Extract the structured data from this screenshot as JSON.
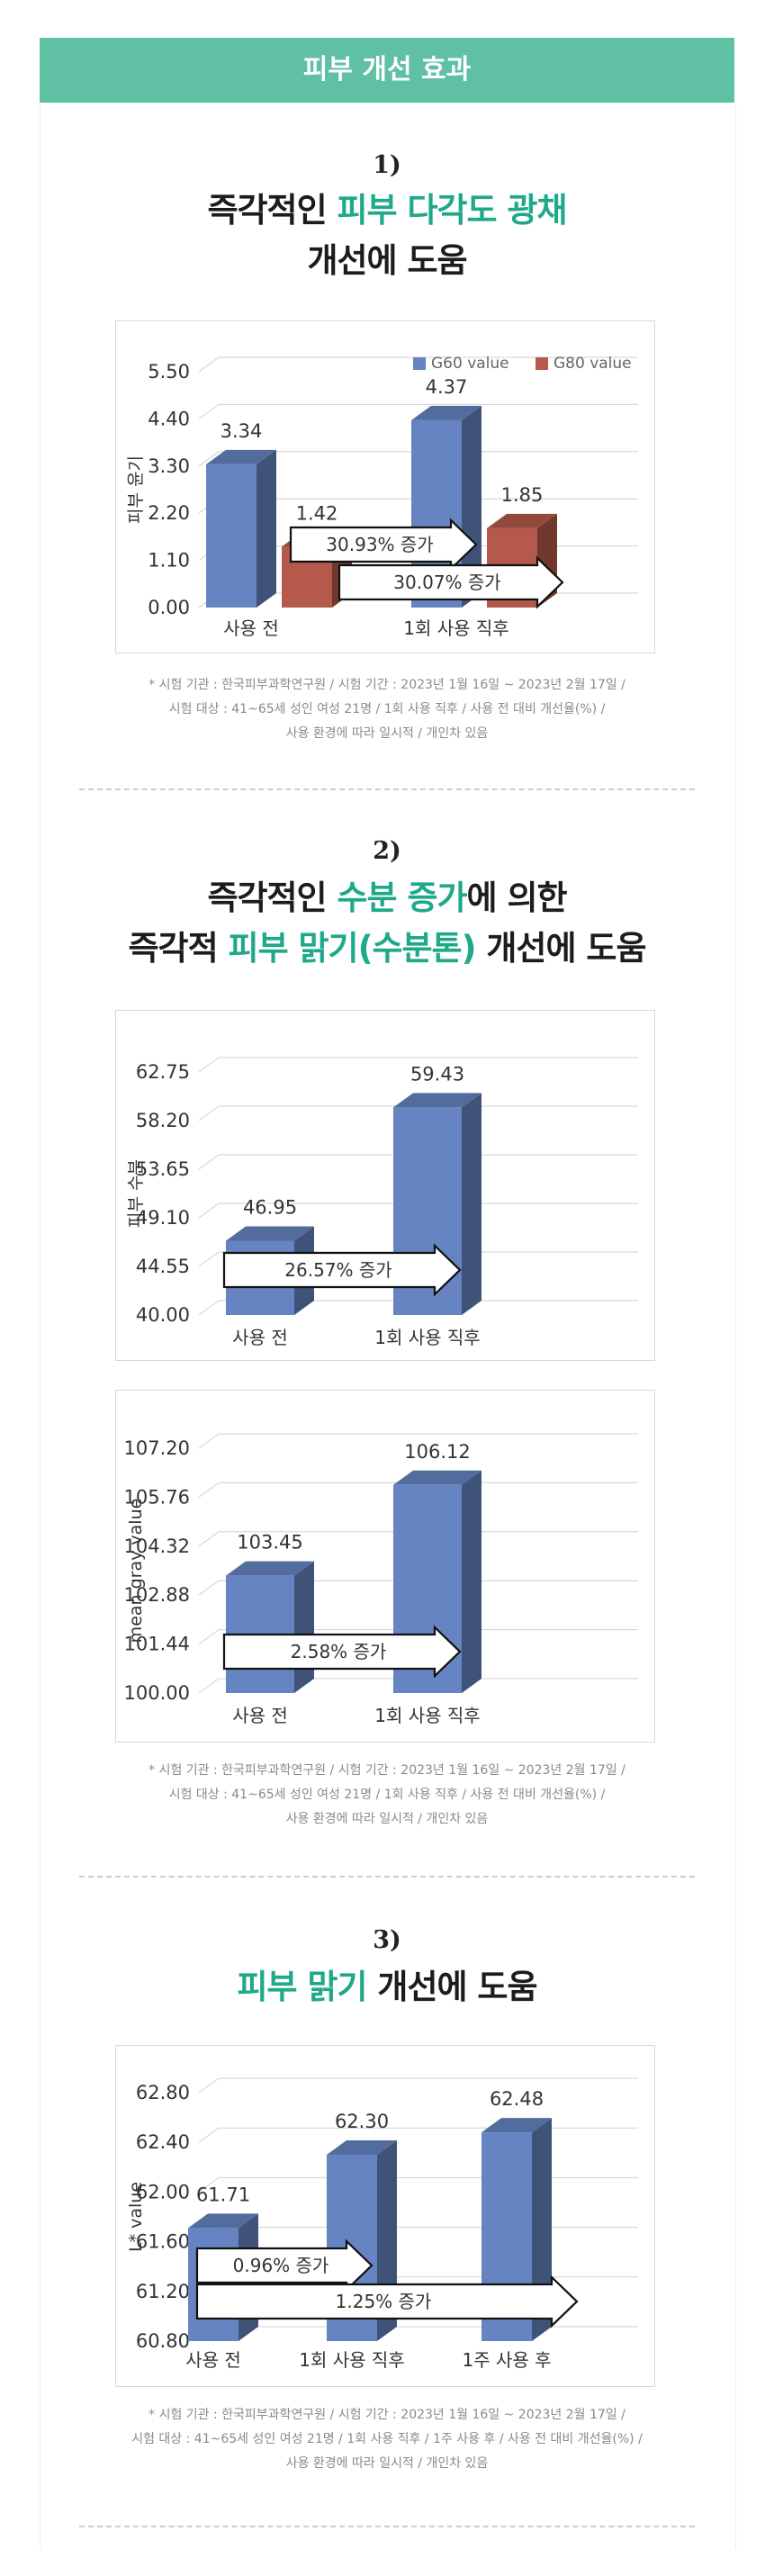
{
  "banner": {
    "title": "피부 개선 효과"
  },
  "colors": {
    "accent": "#1fa98a",
    "banner": "#5fc0a4",
    "series_blue": "#6584c1",
    "series_red": "#b4594b"
  },
  "section1": {
    "number": "1)",
    "heading_line1_pre": "즉각적인 ",
    "heading_line1_hl": "피부 다각도 광채",
    "heading_line2": "개선에 도움",
    "note_lines": [
      "* 시험 기관 : 한국피부과학연구원 / 시험 기간 : 2023년 1월 16일 ~ 2023년 2월 17일 /",
      "시험 대상 : 41~65세 성인 여성 21명 / 1회 사용 직후 / 사용 전 대비 개선율(%) /",
      "사용 환경에 따라 일시적 / 개인차 있음"
    ]
  },
  "section2": {
    "number": "2)",
    "heading_line1_pre": "즉각적인 ",
    "heading_line1_hl": "수분 증가",
    "heading_line1_post": "에 의한",
    "heading_line2_pre": "즉각적 ",
    "heading_line2_hl": "피부 맑기(수분톤)",
    "heading_line2_post": " 개선에 도움",
    "note_lines": [
      "* 시험 기관 : 한국피부과학연구원 / 시험 기간 : 2023년 1월 16일 ~ 2023년 2월 17일 /",
      "시험 대상 : 41~65세 성인 여성 21명 / 1회 사용 직후 / 사용 전 대비 개선율(%) /",
      "사용 환경에 따라 일시적 / 개인차 있음"
    ]
  },
  "section3": {
    "number": "3)",
    "heading_hl": "피부 맑기",
    "heading_post": " 개선에 도움",
    "note_lines": [
      "* 시험 기관 : 한국피부과학연구원 / 시험 기간 : 2023년 1월 16일 ~ 2023년 2월 17일 /",
      "시험 대상 : 41~65세 성인 여성 21명 / 1회 사용 직후 / 1주 사용 후 / 사용 전 대비 개선율(%) /",
      "사용 환경에 따라 일시적 / 개인차 있음"
    ]
  },
  "chart_data": [
    {
      "type": "bar",
      "categories": [
        "사용 전",
        "1회 사용 직후"
      ],
      "series": [
        {
          "name": "G60 value",
          "values": [
            3.34,
            4.37
          ],
          "color": "#6584c1"
        },
        {
          "name": "G80 value",
          "values": [
            1.42,
            1.85
          ],
          "color": "#b4594b"
        }
      ],
      "ylabel": "피부 윤기",
      "yticks": [
        0.0,
        1.1,
        2.2,
        3.3,
        4.4,
        5.5
      ],
      "ylim": [
        0,
        5.5
      ],
      "legend": "top-right",
      "grid": true,
      "annotations": [
        "30.93% 증가",
        "30.07% 증가"
      ]
    },
    {
      "type": "bar",
      "categories": [
        "사용 전",
        "1회 사용 직후"
      ],
      "series": [
        {
          "values": [
            46.95,
            59.43
          ],
          "color": "#6584c1"
        }
      ],
      "ylabel": "피부 수분",
      "yticks": [
        40.0,
        44.55,
        49.1,
        53.65,
        58.2,
        62.75
      ],
      "ylim": [
        40,
        62.75
      ],
      "grid": true,
      "annotations": [
        "26.57% 증가"
      ]
    },
    {
      "type": "bar",
      "categories": [
        "사용 전",
        "1회 사용 직후"
      ],
      "series": [
        {
          "values": [
            103.45,
            106.12
          ],
          "color": "#6584c1"
        }
      ],
      "ylabel": "mean gray value",
      "yticks": [
        100.0,
        101.44,
        102.88,
        104.32,
        105.76,
        107.2
      ],
      "ylim": [
        100,
        107.2
      ],
      "grid": true,
      "annotations": [
        "2.58% 증가"
      ]
    },
    {
      "type": "bar",
      "categories": [
        "사용 전",
        "1회 사용 직후",
        "1주 사용 후"
      ],
      "series": [
        {
          "values": [
            61.71,
            62.3,
            62.48
          ],
          "color": "#6584c1"
        }
      ],
      "ylabel": "L* value",
      "yticks": [
        60.8,
        61.2,
        61.6,
        62.0,
        62.4,
        62.8
      ],
      "ylim": [
        60.8,
        62.8
      ],
      "grid": true,
      "annotations": [
        "0.96% 증가",
        "1.25% 증가"
      ]
    }
  ]
}
